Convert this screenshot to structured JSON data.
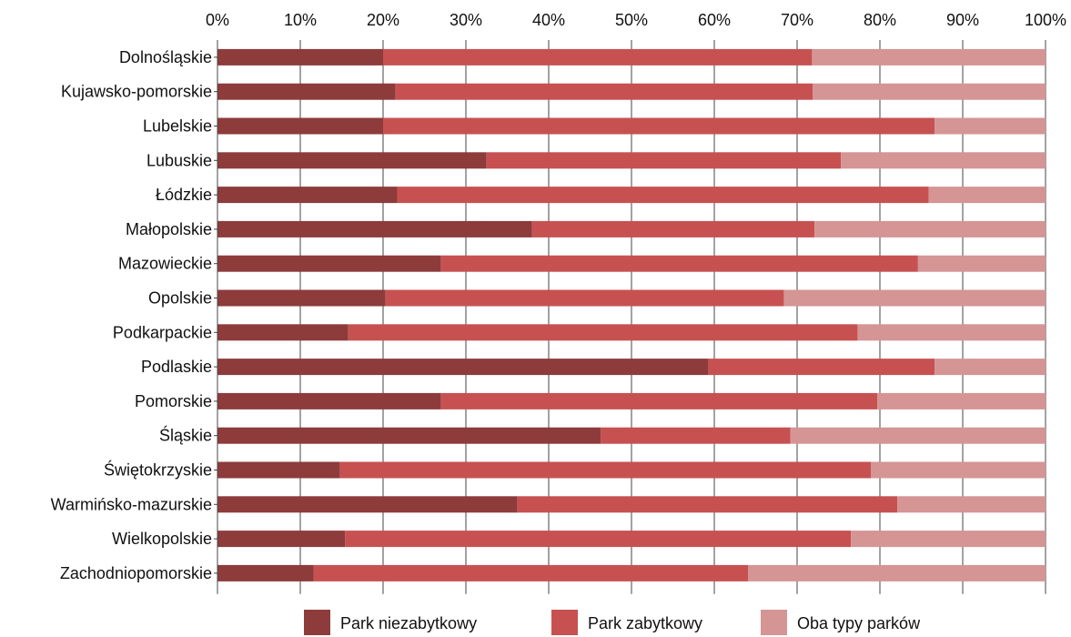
{
  "chart_data": {
    "type": "bar",
    "orientation": "horizontal",
    "stacked": "percent",
    "categories": [
      "Dolnośląskie",
      "Kujawsko-pomorskie",
      "Lubelskie",
      "Lubuskie",
      "Łódzkie",
      "Małopolskie",
      "Mazowieckie",
      "Opolskie",
      "Podkarpackie",
      "Podlaskie",
      "Pomorskie",
      "Śląskie",
      "Świętokrzyskie",
      "Warmińsko-mazurskie",
      "Wielkopolskie",
      "Zachodniopomorskie"
    ],
    "series": [
      {
        "name": "Park niezabytkowy",
        "color": "#8e3b3b",
        "values": [
          20,
          21.5,
          20,
          32.5,
          21.7,
          38,
          27,
          20.3,
          15.8,
          59.3,
          27,
          46.3,
          14.8,
          36.2,
          15.4,
          11.6
        ]
      },
      {
        "name": "Park zabytkowy",
        "color": "#c75151",
        "values": [
          51.8,
          50.4,
          66.6,
          42.8,
          64.2,
          34.1,
          57.6,
          48.1,
          61.5,
          27.3,
          52.7,
          22.9,
          64.1,
          45.9,
          61.1,
          52.5
        ]
      },
      {
        "name": "Oba typy parków",
        "color": "#d59595",
        "values": [
          28.2,
          28.1,
          13.4,
          24.7,
          14.1,
          27.9,
          15.4,
          31.6,
          22.7,
          13.4,
          20.3,
          30.8,
          21.1,
          17.9,
          23.5,
          35.9
        ]
      }
    ],
    "xlim": [
      0,
      100
    ],
    "x_ticks": [
      "0%",
      "10%",
      "20%",
      "30%",
      "40%",
      "50%",
      "60%",
      "70%",
      "80%",
      "90%",
      "100%"
    ],
    "title": "",
    "xlabel": "",
    "ylabel": "",
    "grid": "vertical",
    "x_axis_position": "top",
    "legend_position": "bottom"
  }
}
